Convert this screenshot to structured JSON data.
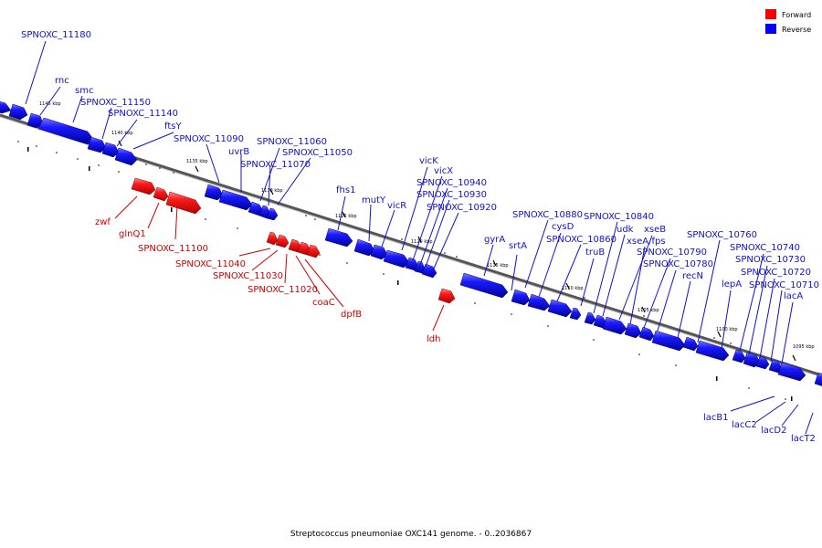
{
  "colors": {
    "forward": "#ff0000",
    "reverse": "#0000ff",
    "forward_label": "#cc0000",
    "reverse_label": "#1010cc",
    "backbone": "#777777"
  },
  "legend": [
    {
      "key": "forward",
      "label": "Forward"
    },
    {
      "key": "reverse",
      "label": "Reverse"
    }
  ],
  "caption": "Streptococcus pneumoniae OXC141 genome. - 0..2036867",
  "ticks": [
    "1145 kbp",
    "1140 kbp",
    "1135 kbp",
    "1130 kbp",
    "1125 kbp",
    "1120 kbp",
    "1115 kbp",
    "1110 kbp",
    "1105 kbp",
    "1100 kbp",
    "1095 kbp"
  ],
  "reverse_labels": [
    "SPNOXC_11180",
    "rnc",
    "smc",
    "SPNOXC_11150",
    "SPNOXC_11140",
    "ftsY",
    "SPNOXC_11090",
    "uvrB",
    "SPNOXC_11060",
    "SPNOXC_11050",
    "SPNOXC_11070",
    "fhs1",
    "mutY",
    "vicR",
    "vicK",
    "vicX",
    "SPNOXC_10940",
    "SPNOXC_10930",
    "SPNOXC_10920",
    "gyrA",
    "srtA",
    "SPNOXC_10880",
    "cysD",
    "SPNOXC_10860",
    "truB",
    "SPNOXC_10840",
    "udk",
    "xseB",
    "xseA/fps",
    "SPNOXC_10790",
    "SPNOXC_10780",
    "recN",
    "SPNOXC_10760",
    "lepA",
    "SPNOXC_10740",
    "SPNOXC_10730",
    "SPNOXC_10720",
    "SPNOXC_10710",
    "lacA"
  ],
  "forward_labels": [
    "zwf",
    "glnQ1",
    "SPNOXC_11100",
    "SPNOXC_11040",
    "SPNOXC_11030",
    "SPNOXC_11020",
    "coaC",
    "dpfB",
    "ldh"
  ],
  "lower_labels": [
    "lacB1",
    "lacC2",
    "lacD2",
    "lacT2"
  ]
}
